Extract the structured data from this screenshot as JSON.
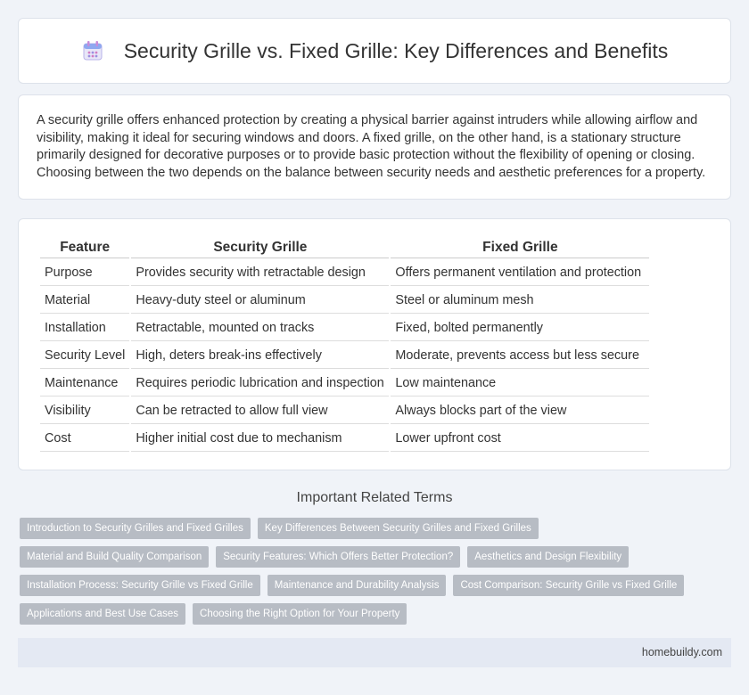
{
  "header": {
    "title": "Security Grille vs. Fixed Grille: Key Differences and Benefits",
    "icon": "calendar-icon"
  },
  "intro": {
    "text": "A security grille offers enhanced protection by creating a physical barrier against intruders while allowing airflow and visibility, making it ideal for securing windows and doors. A fixed grille, on the other hand, is a stationary structure primarily designed for decorative purposes or to provide basic protection without the flexibility of opening or closing. Choosing between the two depends on the balance between security needs and aesthetic preferences for a property."
  },
  "table": {
    "headers": [
      "Feature",
      "Security Grille",
      "Fixed Grille"
    ],
    "rows": [
      [
        "Purpose",
        "Provides security with retractable design",
        "Offers permanent ventilation and protection"
      ],
      [
        "Material",
        "Heavy-duty steel or aluminum",
        "Steel or aluminum mesh"
      ],
      [
        "Installation",
        "Retractable, mounted on tracks",
        "Fixed, bolted permanently"
      ],
      [
        "Security Level",
        "High, deters break-ins effectively",
        "Moderate, prevents access but less secure"
      ],
      [
        "Maintenance",
        "Requires periodic lubrication and inspection",
        "Low maintenance"
      ],
      [
        "Visibility",
        "Can be retracted to allow full view",
        "Always blocks part of the view"
      ],
      [
        "Cost",
        "Higher initial cost due to mechanism",
        "Lower upfront cost"
      ]
    ]
  },
  "related": {
    "title": "Important Related Terms",
    "tags": [
      [
        "Introduction to Security Grilles and Fixed Grilles",
        "Key Differences Between Security Grilles and Fixed Grilles"
      ],
      [
        "Material and Build Quality Comparison",
        "Security Features: Which Offers Better Protection?",
        "Aesthetics and Design Flexibility"
      ],
      [
        "Installation Process: Security Grille vs Fixed Grille",
        "Maintenance and Durability Analysis",
        "Cost Comparison: Security Grille vs Fixed Grille"
      ],
      [
        "Applications and Best Use Cases",
        "Choosing the Right Option for Your Property"
      ]
    ]
  },
  "footer": {
    "site": "homebuildy.com"
  },
  "colors": {
    "tag_bg": "#b7bcc4",
    "page_bg": "#f0f3f8",
    "footer_bg": "#e4e9f3"
  }
}
